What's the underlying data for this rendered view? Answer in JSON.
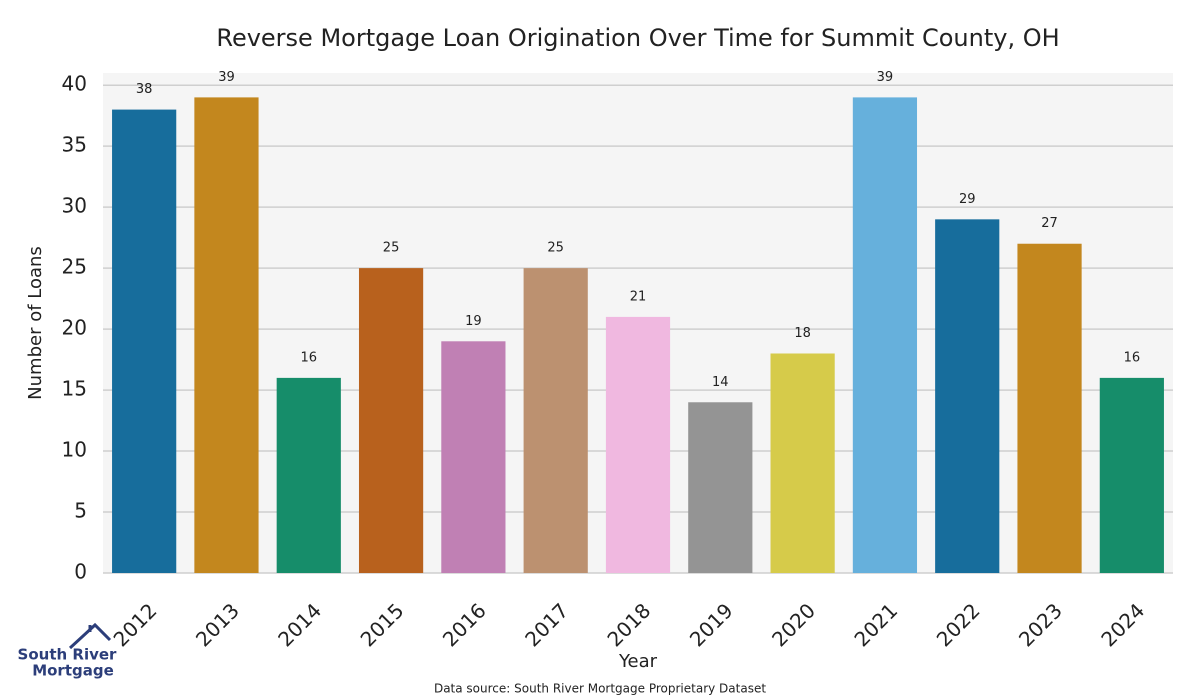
{
  "chart_data": {
    "type": "bar",
    "title": "Reverse Mortgage Loan Origination Over Time for Summit County, OH",
    "x_label": "Year",
    "y_label": "Number of Loans",
    "categories": [
      "2012",
      "2013",
      "2014",
      "2015",
      "2016",
      "2017",
      "2018",
      "2019",
      "2020",
      "2021",
      "2022",
      "2023",
      "2024"
    ],
    "values": [
      38,
      39,
      16,
      25,
      19,
      25,
      21,
      14,
      18,
      39,
      29,
      27,
      16
    ],
    "colors": [
      "#176d9c",
      "#c3871e",
      "#168d6a",
      "#b8611d",
      "#c080b4",
      "#bc9170",
      "#f0b8e0",
      "#949494",
      "#d6cb4a",
      "#66b0dc",
      "#176d9c",
      "#c3871e",
      "#168d6a"
    ],
    "ylim": [
      0,
      41
    ],
    "yticks": [
      0,
      5,
      10,
      15,
      20,
      25,
      30,
      35,
      40
    ],
    "grid": true,
    "source": "Data source: South River Mortgage Proprietary Dataset"
  },
  "logo": {
    "line1": "South River",
    "line2": "Mortgage"
  }
}
